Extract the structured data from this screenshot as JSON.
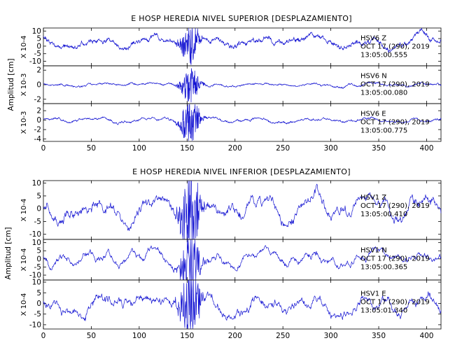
{
  "chart_data": [
    {
      "type": "line",
      "title": "E HOSP HEREDIA NIVEL SUPERIOR [DESPLAZAMIENTO]",
      "ylabel": "Amplitud [cm]",
      "xlim": [
        0,
        415
      ],
      "xticks": [
        0,
        50,
        100,
        150,
        200,
        250,
        300,
        350,
        400
      ],
      "grid": false,
      "panels": [
        {
          "station": "HSV6",
          "component": "Z",
          "date": "OCT 17 (290), 2019",
          "time": "13:05:00.555",
          "multiplier": "X 10-4",
          "ylim": [
            -13,
            12
          ],
          "yticks": [
            10,
            5,
            0,
            -5,
            -10
          ],
          "style": "dense",
          "seed": 11,
          "noise": 1.2,
          "burst": 2.0,
          "amp": 4.2,
          "offset": 2.5
        },
        {
          "station": "HSV6",
          "component": "N",
          "date": "OCT 17 (290), 2019",
          "time": "13:05:00.080",
          "multiplier": "X 10-3",
          "ylim": [
            -2.6,
            2.6
          ],
          "yticks": [
            2,
            0,
            -2
          ],
          "style": "dense",
          "seed": 23,
          "noise": 0.1,
          "burst": 1.8,
          "amp": 0.25,
          "offset": 0
        },
        {
          "station": "HSV6",
          "component": "E",
          "date": "OCT 17 (290), 2019",
          "time": "13:05:00.775",
          "multiplier": "X 10-3",
          "ylim": [
            -4.5,
            3.5
          ],
          "yticks": [
            2,
            0,
            -2,
            -4
          ],
          "style": "dense",
          "seed": 37,
          "noise": 0.18,
          "burst": 2.6,
          "amp": 0.6,
          "offset": 0
        }
      ]
    },
    {
      "type": "line",
      "title": "E HOSP HEREDIA NIVEL INFERIOR [DESPLAZAMIENTO]",
      "ylabel": "Amplitud [cm]",
      "xlim": [
        0,
        415
      ],
      "xticks": [
        0,
        50,
        100,
        150,
        200,
        250,
        300,
        350,
        400
      ],
      "grid": false,
      "panels": [
        {
          "station": "HSV1",
          "component": "Z",
          "date": "OCT 17 (290), 2019",
          "time": "13:05:00.410",
          "multiplier": "X 10-4",
          "ylim": [
            -12,
            11
          ],
          "yticks": [
            10,
            5,
            0,
            -5,
            -10
          ],
          "style": "wiggly",
          "seed": 51,
          "noise": 0.9,
          "burst": 4,
          "amp": 4.5,
          "offset": 0
        },
        {
          "station": "HSV1",
          "component": "N",
          "date": "OCT 17 (290), 2019",
          "time": "13:05:00.365",
          "multiplier": "X 10-4",
          "ylim": [
            -13,
            12
          ],
          "yticks": [
            10,
            5,
            0,
            -5,
            -10
          ],
          "style": "wiggly",
          "seed": 67,
          "noise": 0.9,
          "burst": 4,
          "amp": 4.5,
          "offset": 0
        },
        {
          "station": "HSV1",
          "component": "E",
          "date": "OCT 17 (290), 2019",
          "time": "13:05:01.340",
          "multiplier": "X 10-4",
          "ylim": [
            -12,
            11
          ],
          "yticks": [
            10,
            5,
            0,
            -5,
            -10
          ],
          "style": "wiggly",
          "seed": 83,
          "noise": 0.9,
          "burst": 4,
          "amp": 4.5,
          "offset": 0
        }
      ]
    }
  ],
  "colors": {
    "trace": "#1414d2",
    "axes": "#000000",
    "background": "#ffffff"
  }
}
